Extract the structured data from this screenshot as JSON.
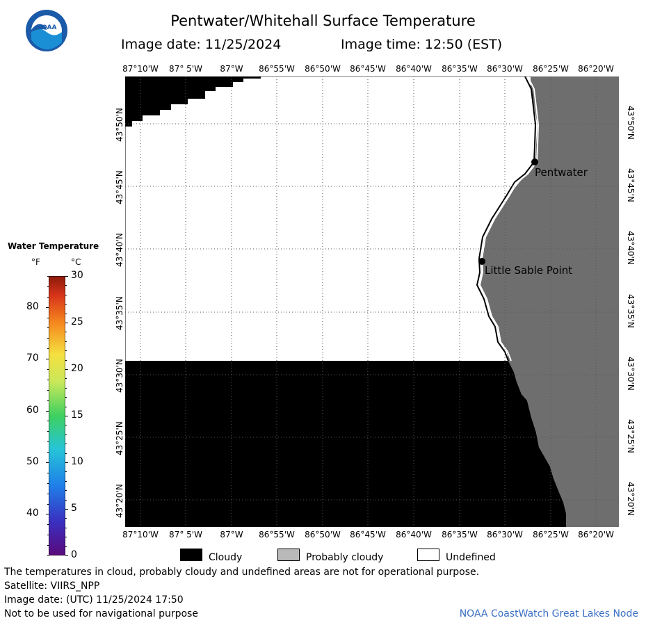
{
  "header": {
    "title": "Pentwater/Whitehall Surface Temperature",
    "image_date": "Image date: 11/25/2024",
    "image_time": "Image time: 12:50 (EST)"
  },
  "logo": {
    "text": "NOAA",
    "icon": "noaa-logo"
  },
  "map": {
    "lon_labels": [
      "87°10'W",
      "87° 5'W",
      "87°W",
      "86°55'W",
      "86°50'W",
      "86°45'W",
      "86°40'W",
      "86°35'W",
      "86°30'W",
      "86°25'W",
      "86°20'W"
    ],
    "lat_labels": [
      "43°50'N",
      "43°45'N",
      "43°40'N",
      "43°35'N",
      "43°30'N",
      "43°25'N",
      "43°20'N"
    ],
    "places": {
      "pentwater": "Pentwater",
      "little_sable_point": "Little Sable Point"
    },
    "colors": {
      "cloud": "#000000",
      "probably_cloudy": "#6e6e6e",
      "undefined": "#ffffff",
      "grid": "#555555"
    }
  },
  "colorbar": {
    "title": "Water Temperature",
    "unit_f": "°F",
    "unit_c": "°C",
    "f_ticks": [
      "80",
      "70",
      "60",
      "50",
      "40"
    ],
    "c_ticks": [
      "30",
      "25",
      "20",
      "15",
      "10",
      "5",
      "0"
    ]
  },
  "legend": {
    "cloudy": "Cloudy",
    "probably_cloudy": "Probably cloudy",
    "undefined": "Undefined",
    "colors": {
      "cloudy": "#000000",
      "probably_cloudy": "#b9b9b9",
      "undefined": "#ffffff"
    }
  },
  "footer": {
    "note": "The temperatures in cloud, probably cloudy and undefined areas are not for operational purpose.",
    "satellite": "Satellite: VIIRS_NPP",
    "utc_date": "Image date: (UTC) 11/25/2024  17:50",
    "nav_warning": "Not to be used for navigational purpose",
    "credit": "NOAA CoastWatch Great Lakes Node"
  }
}
